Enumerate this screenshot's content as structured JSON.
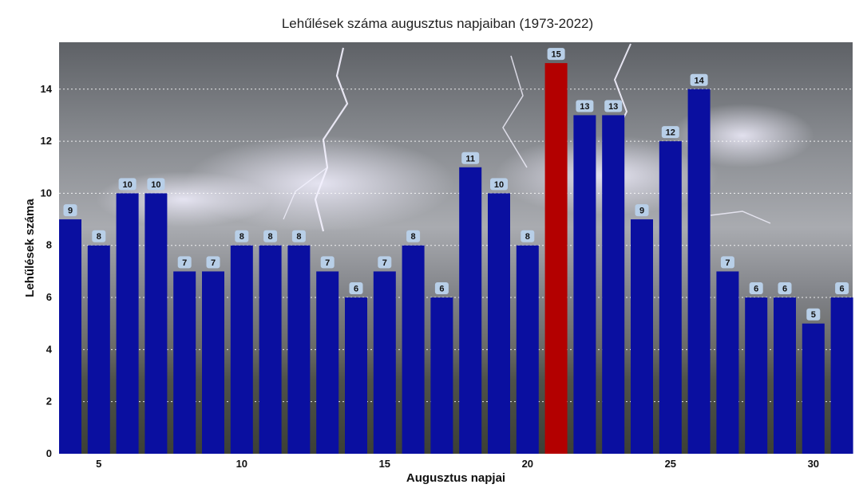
{
  "colors": {
    "bar": "#0a0fa0",
    "highlight": "#b30000",
    "label_bg": "#b8cfe8",
    "grid": "#ffffff"
  },
  "chart_data": {
    "type": "bar",
    "title": "Lehűlések száma augusztus napjaiban (1973-2022)",
    "xlabel": "Augusztus napjai",
    "ylabel": "Lehűlések száma",
    "x": [
      4,
      5,
      6,
      7,
      8,
      9,
      10,
      11,
      12,
      13,
      14,
      15,
      16,
      17,
      18,
      19,
      20,
      21,
      22,
      23,
      24,
      25,
      26,
      27,
      28,
      29,
      30,
      31
    ],
    "values": [
      9,
      8,
      10,
      10,
      7,
      7,
      8,
      8,
      8,
      7,
      6,
      7,
      8,
      6,
      11,
      10,
      8,
      15,
      13,
      13,
      9,
      12,
      14,
      7,
      6,
      6,
      5,
      6
    ],
    "highlight_x": 21,
    "xticks": [
      5,
      10,
      15,
      20,
      25,
      30
    ],
    "yticks": [
      0,
      2,
      4,
      6,
      8,
      10,
      12,
      14
    ],
    "ylim": [
      0,
      15.8
    ],
    "grid": "horizontal dotted",
    "background": "stormy sky with lightning"
  }
}
